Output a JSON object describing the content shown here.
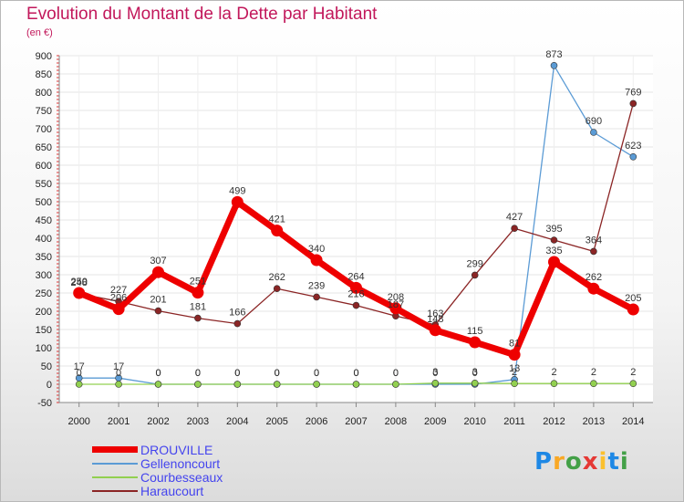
{
  "title": "Evolution du Montant de la Dette par Habitant",
  "subtitle": "(en €)",
  "logo": {
    "text": "Proxiti",
    "letters": [
      {
        "char": "P",
        "color": "#1e88e5"
      },
      {
        "char": "r",
        "color": "#f9a825"
      },
      {
        "char": "o",
        "color": "#43a047"
      },
      {
        "char": "x",
        "color": "#e53935"
      },
      {
        "char": "i",
        "color": "#fbc02d"
      },
      {
        "char": "t",
        "color": "#1e88e5"
      },
      {
        "char": "i",
        "color": "#43a047"
      }
    ]
  },
  "chart_data": {
    "type": "line",
    "title": "Evolution du Montant de la Dette par Habitant",
    "subtitle": "(en €)",
    "x": [
      2000,
      2001,
      2002,
      2003,
      2004,
      2005,
      2006,
      2007,
      2008,
      2009,
      2010,
      2011,
      2012,
      2013,
      2014
    ],
    "y_ticks": [
      -50,
      0,
      50,
      100,
      150,
      200,
      250,
      300,
      350,
      400,
      450,
      500,
      550,
      600,
      650,
      700,
      750,
      800,
      850,
      900
    ],
    "ylim": [
      -50,
      900
    ],
    "grid": true,
    "legend_position": "bottom-left",
    "series": [
      {
        "name": "DROUVILLE",
        "color": "#ee0000",
        "values": [
          250,
          206,
          307,
          251,
          499,
          421,
          340,
          264,
          208,
          148,
          115,
          81,
          335,
          262,
          205
        ],
        "labels": [
          "250",
          "206",
          "307",
          "251",
          "499",
          "421",
          "340",
          "264",
          "208",
          "148",
          "115",
          "81",
          "335",
          "262",
          "205"
        ]
      },
      {
        "name": "Gellenoncourt",
        "color": "#5b9bd5",
        "values": [
          17,
          17,
          0,
          0,
          0,
          0,
          0,
          0,
          0,
          0,
          0,
          13,
          873,
          690,
          623
        ],
        "labels": [
          "17",
          "17",
          "0",
          "0",
          "0",
          "0",
          "0",
          "0",
          "0",
          "0",
          "0",
          "13",
          "873",
          "690",
          "623"
        ]
      },
      {
        "name": "Courbesseaux",
        "color": "#92d050",
        "values": [
          0,
          0,
          0,
          0,
          0,
          0,
          0,
          0,
          0,
          3,
          3,
          2,
          2,
          2,
          2
        ],
        "labels": [
          "0",
          "0",
          "0",
          "0",
          "0",
          "0",
          "0",
          "0",
          "0",
          "3",
          "3",
          "2",
          "2",
          "2",
          "2"
        ]
      },
      {
        "name": "Haraucourt",
        "color": "#8b2525",
        "values": [
          248,
          227,
          201,
          181,
          166,
          262,
          239,
          216,
          187,
          163,
          299,
          427,
          395,
          364,
          769
        ],
        "labels": [
          "248",
          "227",
          "201",
          "181",
          "166",
          "262",
          "239",
          "216",
          "187",
          "163",
          "299",
          "427",
          "395",
          "364",
          "769"
        ]
      }
    ]
  }
}
